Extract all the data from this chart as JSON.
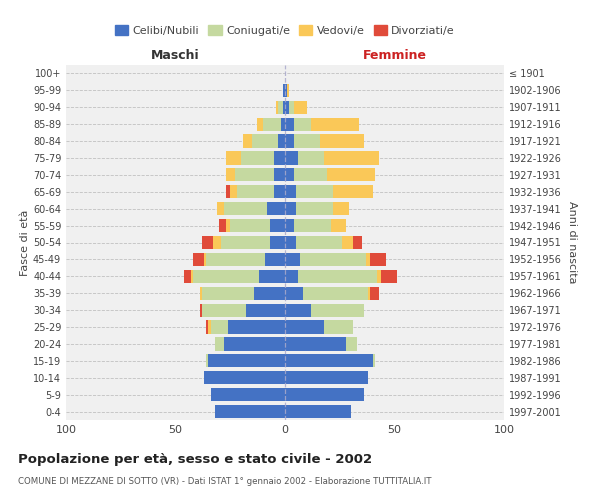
{
  "age_groups": [
    "0-4",
    "5-9",
    "10-14",
    "15-19",
    "20-24",
    "25-29",
    "30-34",
    "35-39",
    "40-44",
    "45-49",
    "50-54",
    "55-59",
    "60-64",
    "65-69",
    "70-74",
    "75-79",
    "80-84",
    "85-89",
    "90-94",
    "95-99",
    "100+"
  ],
  "birth_years": [
    "1997-2001",
    "1992-1996",
    "1987-1991",
    "1982-1986",
    "1977-1981",
    "1972-1976",
    "1967-1971",
    "1962-1966",
    "1957-1961",
    "1952-1956",
    "1947-1951",
    "1942-1946",
    "1937-1941",
    "1932-1936",
    "1927-1931",
    "1922-1926",
    "1917-1921",
    "1912-1916",
    "1907-1911",
    "1902-1906",
    "≤ 1901"
  ],
  "males": {
    "celibi": [
      32,
      34,
      37,
      35,
      28,
      26,
      18,
      14,
      12,
      9,
      7,
      7,
      8,
      5,
      5,
      5,
      3,
      2,
      1,
      1,
      0
    ],
    "coniugati": [
      0,
      0,
      0,
      1,
      4,
      8,
      20,
      24,
      30,
      27,
      22,
      18,
      20,
      17,
      18,
      15,
      12,
      8,
      2,
      0,
      0
    ],
    "vedovi": [
      0,
      0,
      0,
      0,
      0,
      1,
      0,
      1,
      1,
      1,
      4,
      2,
      3,
      3,
      4,
      7,
      4,
      3,
      1,
      0,
      0
    ],
    "divorziati": [
      0,
      0,
      0,
      0,
      0,
      1,
      1,
      0,
      3,
      5,
      5,
      3,
      0,
      2,
      0,
      0,
      0,
      0,
      0,
      0,
      0
    ]
  },
  "females": {
    "nubili": [
      30,
      36,
      38,
      40,
      28,
      18,
      12,
      8,
      6,
      7,
      5,
      4,
      5,
      5,
      4,
      6,
      4,
      4,
      2,
      1,
      0
    ],
    "coniugate": [
      0,
      0,
      0,
      1,
      5,
      13,
      24,
      30,
      36,
      30,
      21,
      17,
      17,
      17,
      15,
      12,
      12,
      8,
      2,
      0,
      0
    ],
    "vedove": [
      0,
      0,
      0,
      0,
      0,
      0,
      0,
      1,
      2,
      2,
      5,
      7,
      7,
      18,
      22,
      25,
      20,
      22,
      6,
      1,
      0
    ],
    "divorziate": [
      0,
      0,
      0,
      0,
      0,
      0,
      0,
      4,
      7,
      7,
      4,
      0,
      0,
      0,
      0,
      0,
      0,
      0,
      0,
      0,
      0
    ]
  },
  "colors": {
    "celibi": "#4472C4",
    "coniugati": "#C5D9A0",
    "vedovi": "#FAC858",
    "divorziati": "#E04B3A"
  },
  "title": "Popolazione per età, sesso e stato civile - 2002",
  "subtitle": "COMUNE DI MEZZANE DI SOTTO (VR) - Dati ISTAT 1° gennaio 2002 - Elaborazione TUTTITALIA.IT",
  "xlabel_left": "Maschi",
  "xlabel_right": "Femmine",
  "ylabel_left": "Fasce di età",
  "ylabel_right": "Anni di nascita",
  "xlim": 100,
  "bg_color": "#ffffff",
  "plot_bg": "#f0f0f0",
  "grid_color": "#cccccc",
  "legend_labels": [
    "Celibi/Nubili",
    "Coniugati/e",
    "Vedovi/e",
    "Divorziati/e"
  ]
}
